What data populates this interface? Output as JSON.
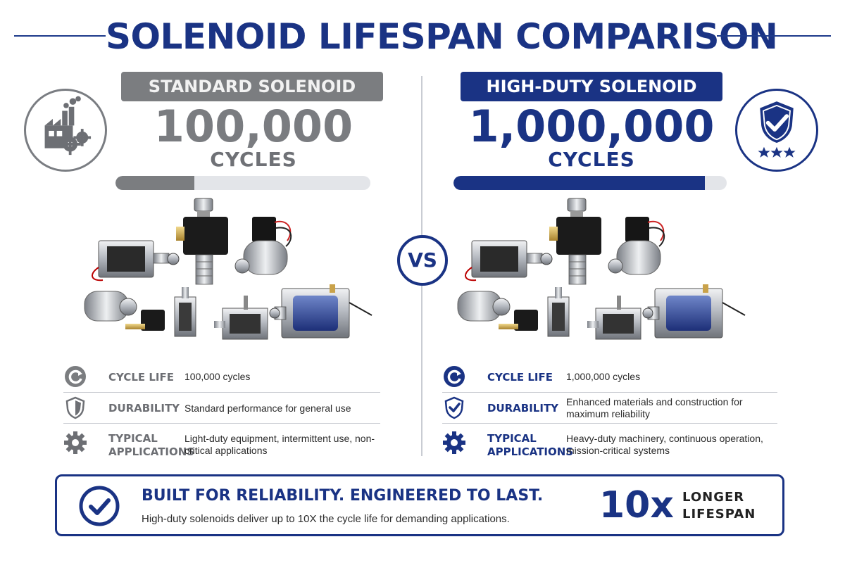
{
  "page": {
    "title": "SOLENOID LIFESPAN COMPARISON",
    "vs_label": "VS"
  },
  "colors": {
    "standard": "#7b7d80",
    "high_duty": "#1a3384",
    "bar_track": "#e3e5e9"
  },
  "standard": {
    "banner": "STANDARD SOLENOID",
    "cycles": "100,000",
    "unit": "CYCLES",
    "emblem_icon": "factory-gears-icon",
    "bar_fill_fraction": 0.31,
    "specs": [
      {
        "icon": "cycle-arrow-icon",
        "label": "CYCLE LIFE",
        "value": "100,000 cycles"
      },
      {
        "icon": "shield-icon",
        "label": "DURABILITY",
        "value": "Standard performance for general use"
      },
      {
        "icon": "gear-icon",
        "label": "TYPICAL APPLICATIONS",
        "value": "Light-duty equipment, intermittent use, non-critical applications"
      }
    ]
  },
  "high_duty": {
    "banner": "HIGH-DUTY SOLENOID",
    "cycles": "1,000,000",
    "unit": "CYCLES",
    "emblem_icon": "shield-check-stars-icon",
    "bar_fill_fraction": 0.92,
    "specs": [
      {
        "icon": "cycle-arrow-icon",
        "label": "CYCLE LIFE",
        "value": "1,000,000 cycles"
      },
      {
        "icon": "shield-check-icon",
        "label": "DURABILITY",
        "value": "Enhanced materials and construction for maximum reliability"
      },
      {
        "icon": "gear-icon",
        "label": "TYPICAL APPLICATIONS",
        "value": "Heavy-duty machinery, continuous operation, mission-critical systems"
      }
    ]
  },
  "footer": {
    "icon": "check-circle-icon",
    "headline": "BUILT FOR RELIABILITY. ENGINEERED TO LAST.",
    "subtext": "High-duty solenoids deliver up to 10X the cycle life for demanding applications.",
    "multiplier": "10x",
    "multiplier_label": "LONGER LIFESPAN"
  }
}
